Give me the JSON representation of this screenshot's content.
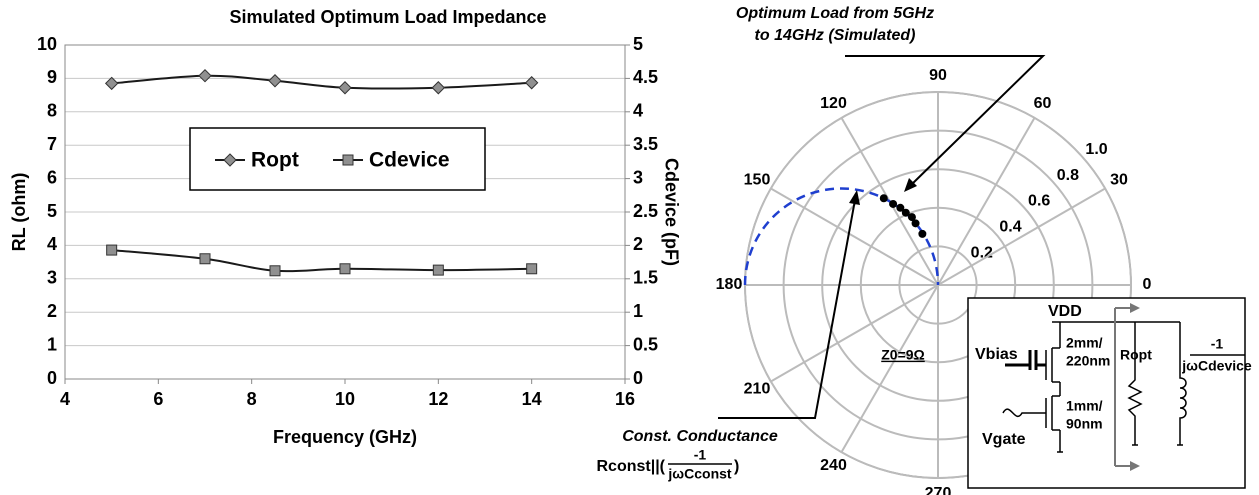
{
  "chart_data": [
    {
      "type": "line",
      "title": "Simulated Optimum Load Impedance",
      "x_label": "Frequency (GHz)",
      "y_label": "RL (ohm)",
      "y2_label": "Cdevice (pF)",
      "x": [
        5,
        7,
        8.5,
        10,
        12,
        14
      ],
      "xlim": [
        4,
        16
      ],
      "xticks": [
        4,
        6,
        8,
        10,
        12,
        14,
        16
      ],
      "ylim": [
        0,
        10
      ],
      "yticks": [
        0,
        1,
        2,
        3,
        4,
        5,
        6,
        7,
        8,
        9,
        10
      ],
      "y2lim": [
        0,
        5
      ],
      "y2ticks": [
        0,
        0.5,
        1,
        1.5,
        2,
        2.5,
        3,
        3.5,
        4,
        4.5,
        5
      ],
      "grid": true,
      "legend": "center",
      "series": [
        {
          "name": "Ropt",
          "color": "#1a1a1a",
          "marker": "diamond",
          "marker_color": "#909090",
          "values": [
            8.85,
            9.08,
            8.93,
            8.72,
            8.72,
            8.87
          ]
        },
        {
          "name": "Cdevice",
          "color": "#1a1a1a",
          "marker": "square",
          "marker_color": "#909090",
          "axis": "y2",
          "values": [
            1.93,
            1.8,
            1.62,
            1.65,
            1.63,
            1.65
          ]
        }
      ]
    },
    {
      "type": "polar",
      "rlim": [
        0,
        1
      ],
      "rticks": [
        0.2,
        0.4,
        0.6,
        0.8,
        {
          "value": 1,
          "label": "1.0"
        }
      ],
      "theta_ticks": [
        0,
        30,
        60,
        90,
        120,
        150,
        180,
        210,
        240,
        270
      ],
      "grid": true,
      "series": [
        {
          "color": "#000000",
          "theta": [
            122,
            119,
            116,
            114,
            111,
            110,
            107
          ],
          "r": [
            0.53,
            0.48,
            0.445,
            0.41,
            0.377,
            0.34,
            0.277
          ]
        }
      ],
      "annotations": {
        "optimum": [
          "Optimum Load from 5GHz",
          "to 14GHz (Simulated)"
        ],
        "conductance": "Const. Conductance",
        "formula": {
          "lead": "Rconst||(",
          "numerator": "-1",
          "denominator": "jωCconst",
          "tail": ")"
        },
        "z0": "Z0=9Ω"
      }
    }
  ],
  "circuit": {
    "vdd": "VDD",
    "vbias": "Vbias",
    "vgate": "Vgate",
    "top_size": [
      "2mm/",
      "220nm"
    ],
    "bottom_size": [
      "1mm/",
      "90nm"
    ],
    "ropt": "Ropt",
    "numerator": "-1",
    "denominator": "jωCdevice"
  }
}
